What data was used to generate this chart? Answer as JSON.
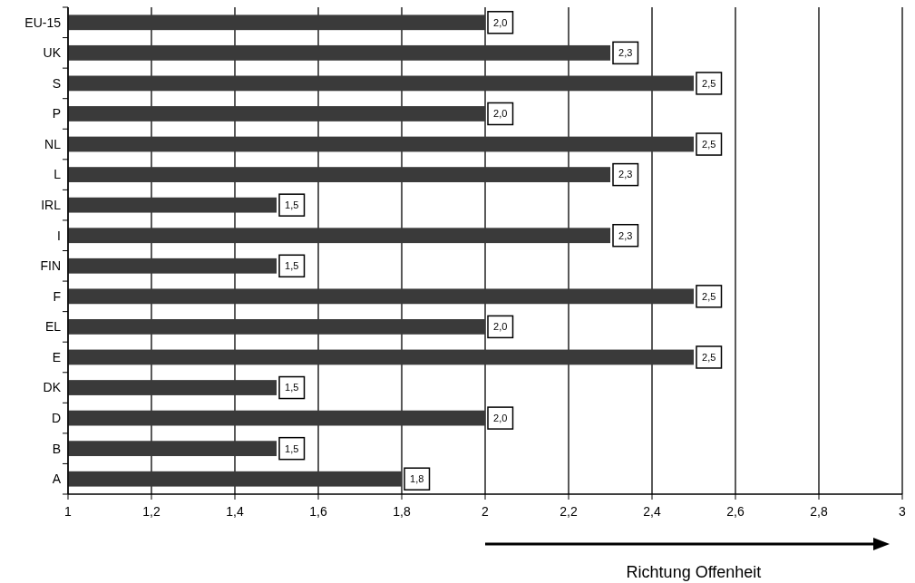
{
  "chart_data": {
    "type": "bar",
    "orientation": "horizontal",
    "categories": [
      "EU-15",
      "UK",
      "S",
      "P",
      "NL",
      "L",
      "IRL",
      "I",
      "FIN",
      "F",
      "EL",
      "E",
      "DK",
      "D",
      "B",
      "A"
    ],
    "values": [
      2.0,
      2.3,
      2.5,
      2.0,
      2.5,
      2.3,
      1.5,
      2.3,
      1.5,
      2.5,
      2.0,
      2.5,
      1.5,
      2.0,
      1.5,
      1.8
    ],
    "value_labels": [
      "2,0",
      "2,3",
      "2,5",
      "2,0",
      "2,5",
      "2,3",
      "1,5",
      "2,3",
      "1,5",
      "2,5",
      "2,0",
      "2,5",
      "1,5",
      "2,0",
      "1,5",
      "1,8"
    ],
    "color": "#3a3a3a",
    "xlim": [
      1,
      3
    ],
    "xticks": [
      1,
      {
        "value": 1.2,
        "label": "1,2"
      },
      {
        "value": 1.4,
        "label": "1,4"
      },
      {
        "value": 1.6,
        "label": "1,6"
      },
      {
        "value": 1.8,
        "label": "1,8"
      },
      2,
      {
        "value": 2.2,
        "label": "2,2"
      },
      {
        "value": 2.4,
        "label": "2,4"
      },
      {
        "value": 2.6,
        "label": "2,6"
      },
      {
        "value": 2.8,
        "label": "2,8"
      },
      3
    ],
    "grid": "x",
    "annotations": [
      "Richtung Offenheit"
    ]
  }
}
